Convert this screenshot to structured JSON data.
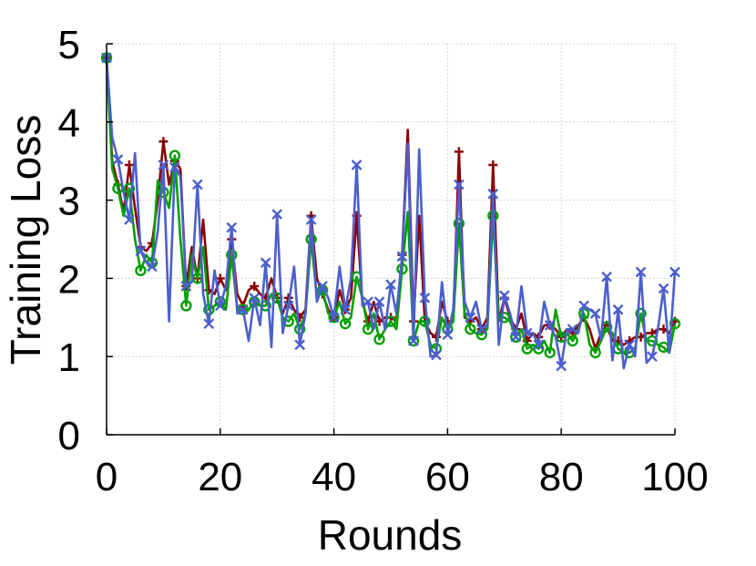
{
  "chart_data": {
    "type": "line",
    "xlabel": "Rounds",
    "ylabel": "Training Loss",
    "xlim": [
      0,
      100
    ],
    "ylim": [
      0,
      5
    ],
    "xticks": [
      0,
      20,
      40,
      60,
      80,
      100
    ],
    "yticks": [
      0,
      1,
      2,
      3,
      4,
      5
    ],
    "grid": true,
    "legend": "none",
    "x": [
      0,
      1,
      2,
      3,
      4,
      5,
      6,
      7,
      8,
      9,
      10,
      11,
      12,
      13,
      14,
      15,
      16,
      17,
      18,
      19,
      20,
      21,
      22,
      23,
      24,
      25,
      26,
      27,
      28,
      29,
      30,
      31,
      32,
      33,
      34,
      35,
      36,
      37,
      38,
      39,
      40,
      41,
      42,
      43,
      44,
      45,
      46,
      47,
      48,
      49,
      50,
      51,
      52,
      53,
      54,
      55,
      56,
      57,
      58,
      59,
      60,
      61,
      62,
      63,
      64,
      65,
      66,
      67,
      68,
      69,
      70,
      71,
      72,
      73,
      74,
      75,
      76,
      77,
      78,
      79,
      80,
      81,
      82,
      83,
      84,
      85,
      86,
      87,
      88,
      89,
      90,
      91,
      92,
      93,
      94,
      95,
      96,
      97,
      98,
      99,
      100
    ],
    "series": [
      {
        "color": "#8b0000",
        "marker": "plus",
        "values": [
          4.82,
          3.5,
          3.2,
          2.85,
          3.45,
          2.9,
          2.4,
          2.35,
          2.45,
          3.0,
          3.75,
          3.2,
          3.5,
          3.4,
          1.9,
          2.4,
          2.0,
          2.75,
          1.85,
          1.8,
          2.0,
          1.85,
          2.5,
          1.8,
          1.65,
          1.85,
          1.9,
          1.8,
          1.75,
          2.0,
          1.75,
          1.55,
          1.75,
          1.6,
          1.5,
          1.6,
          2.8,
          2.0,
          1.8,
          1.6,
          1.5,
          1.85,
          1.6,
          1.75,
          2.8,
          1.7,
          1.45,
          1.7,
          1.45,
          1.5,
          1.5,
          1.45,
          2.3,
          3.9,
          1.45,
          2.8,
          1.45,
          1.3,
          1.25,
          1.7,
          1.45,
          1.45,
          3.62,
          1.5,
          1.45,
          1.5,
          1.35,
          1.5,
          3.45,
          1.45,
          1.75,
          1.5,
          1.35,
          1.55,
          1.2,
          1.3,
          1.25,
          1.4,
          1.4,
          1.35,
          1.25,
          1.35,
          1.3,
          1.4,
          1.5,
          1.35,
          1.1,
          1.3,
          1.4,
          1.2,
          1.2,
          1.15,
          1.2,
          1.25,
          1.25,
          1.3,
          1.3,
          1.35,
          1.35,
          1.3,
          1.45
        ]
      },
      {
        "color": "#00a000",
        "marker": "circle",
        "values": [
          4.82,
          3.4,
          3.15,
          2.8,
          3.15,
          2.5,
          2.1,
          2.3,
          2.2,
          3.25,
          3.1,
          2.9,
          3.57,
          2.5,
          1.65,
          2.3,
          2.0,
          2.4,
          1.6,
          1.65,
          1.7,
          1.6,
          2.3,
          1.6,
          1.6,
          1.6,
          1.7,
          1.65,
          1.65,
          1.8,
          1.75,
          1.5,
          1.45,
          1.55,
          1.35,
          1.55,
          2.5,
          1.75,
          1.85,
          1.55,
          1.5,
          1.7,
          1.42,
          1.5,
          2.02,
          1.75,
          1.35,
          1.55,
          1.22,
          1.35,
          1.45,
          1.35,
          2.12,
          2.85,
          1.2,
          1.45,
          1.45,
          1.15,
          1.1,
          1.5,
          1.35,
          1.45,
          2.7,
          1.55,
          1.35,
          1.3,
          1.28,
          1.35,
          2.8,
          1.5,
          1.5,
          1.45,
          1.25,
          1.35,
          1.1,
          1.15,
          1.1,
          1.2,
          1.05,
          1.6,
          1.25,
          1.3,
          1.2,
          1.35,
          1.55,
          1.15,
          1.05,
          1.2,
          1.38,
          1.3,
          1.1,
          1.05,
          1.05,
          1.1,
          1.55,
          1.2,
          1.2,
          1.15,
          1.12,
          1.05,
          1.42
        ]
      },
      {
        "color": "#4b5fce",
        "marker": "cross",
        "values": [
          4.82,
          3.8,
          3.52,
          3.1,
          2.75,
          3.6,
          2.35,
          2.2,
          2.15,
          2.6,
          3.45,
          1.45,
          3.42,
          3.3,
          1.9,
          1.95,
          3.2,
          1.8,
          1.42,
          2.1,
          1.65,
          1.9,
          2.65,
          1.55,
          1.6,
          1.2,
          1.75,
          1.4,
          2.2,
          1.12,
          2.82,
          1.3,
          1.65,
          2.15,
          1.15,
          1.55,
          2.75,
          1.7,
          1.9,
          1.75,
          1.5,
          2.15,
          1.6,
          2.0,
          3.45,
          1.65,
          1.7,
          1.35,
          1.7,
          1.35,
          1.92,
          1.55,
          2.28,
          3.72,
          1.2,
          3.65,
          1.75,
          1.0,
          1.02,
          1.95,
          1.28,
          1.6,
          3.2,
          1.7,
          1.5,
          1.7,
          1.35,
          1.4,
          3.08,
          1.15,
          1.78,
          1.55,
          1.25,
          1.9,
          1.3,
          1.3,
          1.15,
          1.7,
          1.4,
          1.25,
          0.88,
          1.35,
          1.35,
          1.3,
          1.65,
          1.6,
          1.55,
          1.22,
          2.02,
          0.95,
          1.6,
          0.85,
          1.15,
          1.0,
          2.08,
          0.92,
          1.0,
          1.35,
          1.87,
          1.05,
          2.08
        ]
      }
    ]
  }
}
